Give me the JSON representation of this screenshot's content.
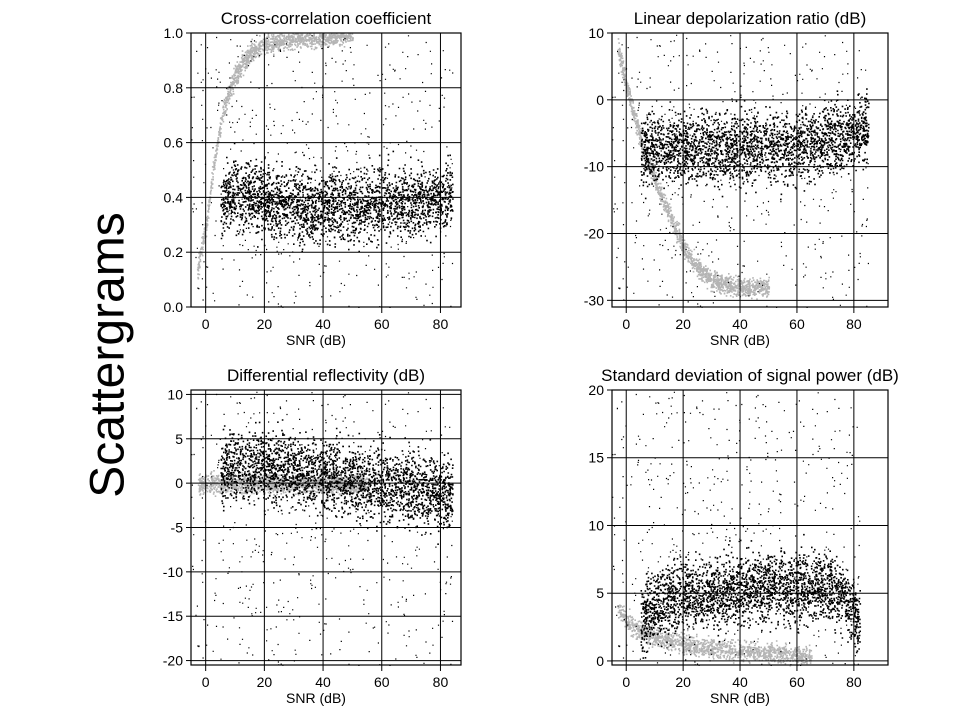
{
  "slide_title": "Scattergrams",
  "colors": {
    "dense": "#000000",
    "gray": "#b4b4b4"
  },
  "chart_data": [
    {
      "type": "scatter",
      "title": "Cross-correlation coefficient",
      "xlabel": "SNR (dB)",
      "ylabel": "",
      "xlim": [
        -5,
        87
      ],
      "ylim": [
        0,
        1
      ],
      "xticks": [
        0,
        20,
        40,
        60,
        80
      ],
      "yticks": [
        0.0,
        0.2,
        0.4,
        0.6,
        0.8,
        1.0
      ],
      "ytick_labels": [
        "0.0",
        "0.2",
        "0.4",
        "0.6",
        "0.8",
        "1.0"
      ],
      "grid": true,
      "series": [
        {
          "color": "gray",
          "x": [
            -3,
            0,
            3,
            6,
            10,
            15,
            20,
            30,
            40,
            50
          ],
          "y": [
            0.13,
            0.3,
            0.55,
            0.72,
            0.85,
            0.93,
            0.96,
            0.98,
            0.99,
            1.0
          ]
        },
        {
          "color": "dense",
          "x": [
            5,
            10,
            15,
            20,
            30,
            40,
            50,
            60,
            70,
            80,
            84
          ],
          "y": [
            0.38,
            0.42,
            0.4,
            0.39,
            0.37,
            0.37,
            0.37,
            0.38,
            0.38,
            0.4,
            0.42
          ]
        }
      ]
    },
    {
      "type": "scatter",
      "title": "Linear depolarization ratio (dB)",
      "xlabel": "SNR (dB)",
      "ylabel": "",
      "xlim": [
        -5,
        92
      ],
      "ylim": [
        -31,
        10
      ],
      "xticks": [
        0,
        20,
        40,
        60,
        80
      ],
      "yticks": [
        -30,
        -20,
        -10,
        0,
        10
      ],
      "ytick_labels": [
        "-30",
        "-20",
        "-10",
        "0",
        "10"
      ],
      "grid": true,
      "series": [
        {
          "color": "gray",
          "x": [
            -3,
            0,
            5,
            10,
            15,
            20,
            25,
            30,
            40,
            50
          ],
          "y": [
            8,
            2,
            -6,
            -12,
            -17,
            -22,
            -25,
            -27,
            -28,
            -28
          ]
        },
        {
          "color": "dense",
          "x": [
            5,
            10,
            20,
            30,
            40,
            50,
            60,
            70,
            80,
            85
          ],
          "y": [
            -8,
            -7,
            -7,
            -7,
            -7,
            -7,
            -7,
            -6,
            -5,
            -4
          ]
        }
      ]
    },
    {
      "type": "scatter",
      "title": "Differential reflectivity (dB)",
      "xlabel": "SNR (dB)",
      "ylabel": "",
      "xlim": [
        -5,
        87
      ],
      "ylim": [
        -20.5,
        10.5
      ],
      "xticks": [
        0,
        20,
        40,
        60,
        80
      ],
      "yticks": [
        -20,
        -15,
        -10,
        -5,
        0,
        5,
        10
      ],
      "ytick_labels": [
        "-20",
        "-15",
        "-10",
        "-5",
        "0",
        "5",
        "10"
      ],
      "grid": true,
      "series": [
        {
          "color": "gray",
          "x": [
            -3,
            0,
            5,
            10,
            20,
            30,
            40,
            50,
            55
          ],
          "y": [
            0,
            0,
            0,
            0,
            0,
            0,
            0,
            0,
            0
          ]
        },
        {
          "color": "dense",
          "x": [
            5,
            10,
            20,
            30,
            40,
            50,
            60,
            70,
            80,
            84
          ],
          "y": [
            1.5,
            2,
            2,
            1.5,
            1,
            0.5,
            0,
            -0.5,
            -1,
            -1
          ]
        }
      ]
    },
    {
      "type": "scatter",
      "title": "Standard deviation of signal power (dB)",
      "xlabel": "SNR (dB)",
      "ylabel": "",
      "xlim": [
        -5,
        92
      ],
      "ylim": [
        -0.3,
        20
      ],
      "xticks": [
        0,
        20,
        40,
        60,
        80
      ],
      "yticks": [
        0,
        5,
        10,
        15,
        20
      ],
      "ytick_labels": [
        "0",
        "5",
        "10",
        "15",
        "20"
      ],
      "grid": true,
      "series": [
        {
          "color": "gray",
          "x": [
            -3,
            0,
            5,
            10,
            20,
            30,
            40,
            50,
            60,
            65
          ],
          "y": [
            4,
            3,
            2.2,
            1.8,
            1.3,
            1,
            0.8,
            0.6,
            0.5,
            0.4
          ]
        },
        {
          "color": "dense",
          "x": [
            5,
            10,
            20,
            30,
            40,
            50,
            60,
            70,
            75,
            80,
            82
          ],
          "y": [
            3,
            4,
            5,
            5,
            5.5,
            5.5,
            5.5,
            5.5,
            5,
            3.5,
            2.5
          ]
        }
      ]
    }
  ]
}
